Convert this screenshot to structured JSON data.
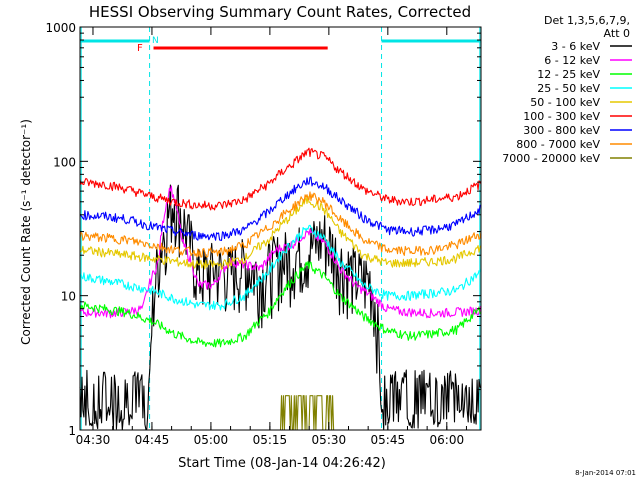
{
  "chart_data": {
    "type": "line",
    "title": "HESSI Observing Summary Count Rates, Corrected",
    "xlabel": "Start Time (08-Jan-14 04:26:42)",
    "ylabel": "Corrected Count Rate (s⁻¹ detector⁻¹)",
    "yscale": "log",
    "ylim": [
      1,
      1000
    ],
    "xlim_minutes": [
      0,
      102
    ],
    "x_ticks": [
      {
        "label": "04:30",
        "minute": 3.3
      },
      {
        "label": "04:45",
        "minute": 18.3
      },
      {
        "label": "05:00",
        "minute": 33.3
      },
      {
        "label": "05:15",
        "minute": 48.3
      },
      {
        "label": "05:30",
        "minute": 63.3
      },
      {
        "label": "05:45",
        "minute": 78.3
      },
      {
        "label": "06:00",
        "minute": 93.3
      }
    ],
    "y_ticks": [
      {
        "label": "1",
        "value": 1
      },
      {
        "label": "10",
        "value": 10
      },
      {
        "label": "100",
        "value": 100
      },
      {
        "label": "1000",
        "value": 1000
      }
    ],
    "legend_header": [
      "Det 1,3,5,6,7,9,",
      "Att 0"
    ],
    "legend_position": "right",
    "timestamp": "8-Jan-2014 07:01",
    "flags": {
      "night_periods": [
        [
          0,
          17.7
        ],
        [
          76.7,
          102
        ]
      ],
      "data_gaps": [
        [
          17.7,
          76.7
        ]
      ],
      "night_label": "N",
      "flare_label": "F",
      "flare_interval": [
        18.7,
        63.0
      ],
      "night_color": "#00e5e5",
      "flare_color": "#ff0000"
    },
    "series": [
      {
        "name": "3 - 6 keV",
        "color": "#000000",
        "x": [
          0,
          6,
          12,
          17.7,
          22,
          24,
          27,
          30,
          34,
          38,
          42,
          46,
          50,
          54,
          58,
          62,
          66,
          70,
          74,
          76.7,
          80,
          86,
          92,
          98,
          102
        ],
        "y": [
          1.6,
          1.7,
          1.6,
          1.5,
          35,
          55,
          30,
          14,
          16,
          15,
          17,
          14,
          18,
          20,
          22,
          28,
          18,
          14,
          13,
          1.4,
          1.5,
          1.6,
          1.5,
          1.8,
          2.4
        ]
      },
      {
        "name": "6 - 12 keV",
        "color": "#ff00ff",
        "x": [
          0,
          4,
          8,
          12,
          16,
          20,
          23,
          26,
          30,
          34,
          38,
          42,
          46,
          50,
          54,
          58,
          62,
          66,
          70,
          74,
          78,
          82,
          86,
          90,
          94,
          98,
          102
        ],
        "y": [
          7.5,
          7.5,
          7.4,
          7.6,
          8,
          18,
          65,
          25,
          12,
          12,
          18,
          17,
          16,
          22,
          24,
          30,
          25,
          16,
          12,
          10,
          8,
          7.6,
          7.5,
          7.4,
          7.5,
          7.6,
          7.8
        ]
      },
      {
        "name": "12 - 25 keV",
        "color": "#00ff00",
        "x": [
          0,
          6,
          12,
          18,
          24,
          30,
          36,
          42,
          48,
          54,
          58,
          62,
          66,
          72,
          78,
          84,
          90,
          96,
          102
        ],
        "y": [
          8.5,
          8,
          7.5,
          6.5,
          5.2,
          4.5,
          4.4,
          5,
          7.5,
          13,
          17,
          14,
          10,
          7,
          5.5,
          5,
          5.2,
          5.6,
          8
        ]
      },
      {
        "name": "25 - 50 keV",
        "color": "#00ffff",
        "x": [
          0,
          6,
          12,
          18,
          24,
          30,
          36,
          42,
          48,
          54,
          58,
          62,
          66,
          72,
          78,
          84,
          90,
          96,
          102
        ],
        "y": [
          14,
          13,
          12,
          11,
          9.5,
          8.5,
          8.5,
          10,
          15,
          25,
          32,
          27,
          18,
          12,
          10,
          10,
          10.5,
          11,
          15
        ]
      },
      {
        "name": "50 - 100 keV",
        "color": "#e5c800",
        "x": [
          0,
          6,
          12,
          18,
          24,
          30,
          36,
          42,
          48,
          54,
          58,
          62,
          66,
          72,
          78,
          84,
          90,
          96,
          102
        ],
        "y": [
          22,
          21,
          20,
          19,
          18,
          17,
          17,
          19,
          26,
          40,
          52,
          44,
          30,
          20,
          17.5,
          17.5,
          18,
          19,
          23
        ]
      },
      {
        "name": "100 - 300 keV",
        "color": "#ff0000",
        "x": [
          0,
          6,
          12,
          18,
          24,
          30,
          36,
          42,
          48,
          54,
          58,
          62,
          66,
          72,
          78,
          84,
          90,
          96,
          102
        ],
        "y": [
          70,
          68,
          62,
          55,
          50,
          47,
          47,
          52,
          68,
          95,
          118,
          108,
          85,
          62,
          52,
          50,
          52,
          55,
          68
        ]
      },
      {
        "name": "300 - 800 keV",
        "color": "#0000ff",
        "x": [
          0,
          6,
          12,
          18,
          24,
          30,
          36,
          42,
          48,
          54,
          58,
          62,
          66,
          72,
          78,
          84,
          90,
          96,
          102
        ],
        "y": [
          40,
          39,
          37,
          33,
          30,
          28,
          28,
          31,
          42,
          60,
          72,
          65,
          52,
          38,
          31,
          30,
          31,
          34,
          44
        ]
      },
      {
        "name": "800 - 7000 keV",
        "color": "#ff8c00",
        "x": [
          0,
          6,
          12,
          18,
          24,
          30,
          36,
          42,
          48,
          54,
          58,
          62,
          66,
          72,
          78,
          84,
          90,
          96,
          102
        ],
        "y": [
          28,
          27,
          26,
          24,
          22,
          21,
          21,
          24,
          32,
          45,
          56,
          50,
          37,
          26,
          22,
          21.5,
          22,
          24,
          29
        ]
      },
      {
        "name": "7000 - 20000 keV",
        "color": "#808000",
        "x": [
          0,
          17.7,
          52,
          56,
          60,
          64,
          76.7,
          102
        ],
        "y": [
          1,
          1,
          1,
          1.8,
          1.8,
          1.6,
          1,
          1
        ]
      }
    ]
  }
}
